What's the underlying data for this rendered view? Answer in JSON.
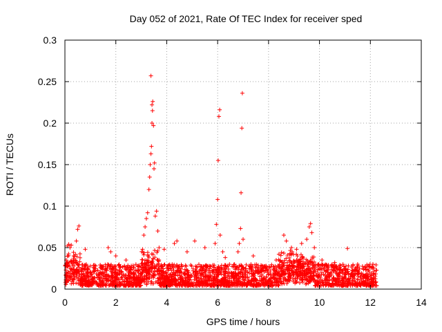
{
  "chart_data": {
    "type": "scatter",
    "title": "Day 052 of 2021, Rate Of TEC Index for receiver sped",
    "xlabel": "GPS time / hours",
    "ylabel": "ROTI / TECUs",
    "xlim": [
      0,
      14
    ],
    "ylim": [
      0,
      0.3
    ],
    "xticks": [
      0,
      2,
      4,
      6,
      8,
      10,
      12,
      14
    ],
    "xtick_labels": [
      "0",
      "2",
      "4",
      "6",
      "8",
      "10",
      "12",
      "14"
    ],
    "yticks": [
      0,
      0.05,
      0.1,
      0.15,
      0.2,
      0.25,
      0.3
    ],
    "ytick_labels": [
      "0",
      "0.05",
      "0.1",
      "0.15",
      "0.2",
      "0.25",
      "0.3"
    ],
    "grid": true,
    "marker": "+",
    "color": "#ff0000",
    "series": [
      {
        "name": "ROTI",
        "points": [
          [
            0.05,
            0.035
          ],
          [
            0.1,
            0.052
          ],
          [
            0.15,
            0.054
          ],
          [
            0.2,
            0.05
          ],
          [
            0.25,
            0.053
          ],
          [
            0.3,
            0.03
          ],
          [
            0.45,
            0.058
          ],
          [
            0.5,
            0.072
          ],
          [
            0.55,
            0.076
          ],
          [
            0.8,
            0.048
          ],
          [
            1.7,
            0.05
          ],
          [
            1.8,
            0.045
          ],
          [
            2.0,
            0.04
          ],
          [
            2.4,
            0.035
          ],
          [
            3.05,
            0.048
          ],
          [
            3.1,
            0.065
          ],
          [
            3.15,
            0.075
          ],
          [
            3.2,
            0.085
          ],
          [
            3.25,
            0.092
          ],
          [
            3.3,
            0.12
          ],
          [
            3.33,
            0.135
          ],
          [
            3.35,
            0.15
          ],
          [
            3.38,
            0.163
          ],
          [
            3.4,
            0.172
          ],
          [
            3.42,
            0.2
          ],
          [
            3.44,
            0.215
          ],
          [
            3.45,
            0.226
          ],
          [
            3.38,
            0.257
          ],
          [
            3.42,
            0.222
          ],
          [
            3.48,
            0.197
          ],
          [
            3.5,
            0.145
          ],
          [
            3.52,
            0.152
          ],
          [
            3.55,
            0.088
          ],
          [
            3.6,
            0.094
          ],
          [
            3.65,
            0.07
          ],
          [
            3.7,
            0.05
          ],
          [
            3.9,
            0.048
          ],
          [
            4.3,
            0.055
          ],
          [
            4.4,
            0.058
          ],
          [
            4.8,
            0.045
          ],
          [
            5.1,
            0.058
          ],
          [
            5.5,
            0.05
          ],
          [
            5.9,
            0.055
          ],
          [
            5.95,
            0.078
          ],
          [
            6.0,
            0.108
          ],
          [
            6.02,
            0.155
          ],
          [
            6.05,
            0.208
          ],
          [
            6.08,
            0.216
          ],
          [
            6.1,
            0.065
          ],
          [
            6.2,
            0.045
          ],
          [
            6.3,
            0.038
          ],
          [
            6.8,
            0.045
          ],
          [
            6.85,
            0.055
          ],
          [
            6.9,
            0.073
          ],
          [
            6.92,
            0.116
          ],
          [
            6.95,
            0.194
          ],
          [
            6.97,
            0.236
          ],
          [
            7.0,
            0.06
          ],
          [
            7.4,
            0.04
          ],
          [
            8.3,
            0.035
          ],
          [
            8.6,
            0.065
          ],
          [
            8.7,
            0.058
          ],
          [
            8.9,
            0.05
          ],
          [
            9.1,
            0.048
          ],
          [
            9.3,
            0.055
          ],
          [
            9.5,
            0.06
          ],
          [
            9.6,
            0.075
          ],
          [
            9.65,
            0.079
          ],
          [
            9.7,
            0.068
          ],
          [
            9.8,
            0.05
          ],
          [
            10.1,
            0.035
          ],
          [
            10.6,
            0.032
          ],
          [
            11.1,
            0.049
          ],
          [
            11.5,
            0.03
          ],
          [
            12.1,
            0.03
          ]
        ],
        "noise": {
          "x_range": [
            0,
            12.25
          ],
          "baseline_min": 0.004,
          "baseline_max": 0.03,
          "count": 2600
        }
      }
    ]
  }
}
